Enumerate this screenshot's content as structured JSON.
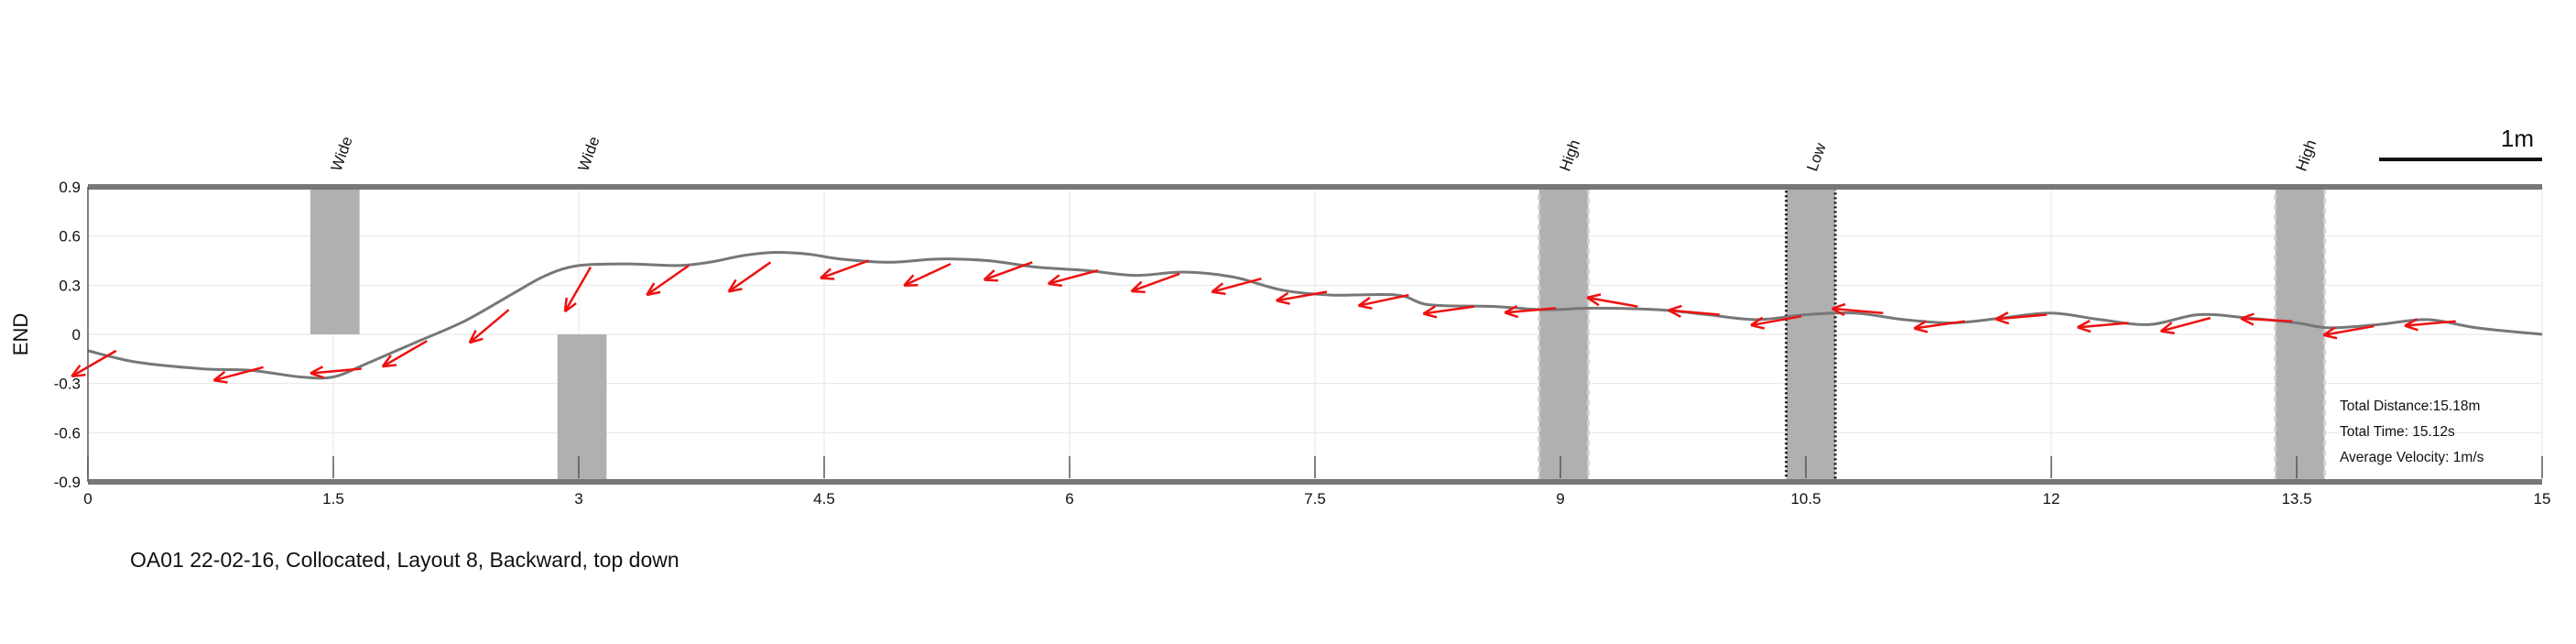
{
  "chart_data": {
    "type": "line",
    "xlim": [
      0,
      15
    ],
    "ylim": [
      -0.9,
      0.9
    ],
    "xticks": [
      "0",
      "1.5",
      "3",
      "4.5",
      "6",
      "7.5",
      "9",
      "10.5",
      "12",
      "13.5",
      "15"
    ],
    "yticks": [
      "0.9",
      "0.6",
      "0.3",
      "0",
      "-0.3",
      "-0.6",
      "-0.9"
    ],
    "ylabel": "END",
    "xlabel": "",
    "grid": true,
    "series": [
      {
        "points": [
          [
            0,
            -0.1
          ],
          [
            0.3,
            -0.17
          ],
          [
            0.7,
            -0.21
          ],
          [
            1.0,
            -0.22
          ],
          [
            1.3,
            -0.26
          ],
          [
            1.5,
            -0.26
          ],
          [
            1.7,
            -0.18
          ],
          [
            2.0,
            -0.05
          ],
          [
            2.3,
            0.08
          ],
          [
            2.6,
            0.25
          ],
          [
            2.8,
            0.36
          ],
          [
            3.0,
            0.42
          ],
          [
            3.3,
            0.43
          ],
          [
            3.6,
            0.42
          ],
          [
            3.8,
            0.44
          ],
          [
            4.0,
            0.48
          ],
          [
            4.2,
            0.5
          ],
          [
            4.4,
            0.49
          ],
          [
            4.6,
            0.46
          ],
          [
            4.9,
            0.44
          ],
          [
            5.2,
            0.46
          ],
          [
            5.5,
            0.45
          ],
          [
            5.8,
            0.41
          ],
          [
            6.1,
            0.39
          ],
          [
            6.4,
            0.36
          ],
          [
            6.7,
            0.38
          ],
          [
            7.0,
            0.35
          ],
          [
            7.3,
            0.27
          ],
          [
            7.6,
            0.24
          ],
          [
            8.0,
            0.24
          ],
          [
            8.2,
            0.18
          ],
          [
            8.6,
            0.17
          ],
          [
            8.9,
            0.15
          ],
          [
            9.2,
            0.16
          ],
          [
            9.6,
            0.15
          ],
          [
            9.9,
            0.12
          ],
          [
            10.2,
            0.09
          ],
          [
            10.5,
            0.12
          ],
          [
            10.8,
            0.13
          ],
          [
            11.1,
            0.09
          ],
          [
            11.4,
            0.07
          ],
          [
            11.7,
            0.1
          ],
          [
            12.0,
            0.13
          ],
          [
            12.3,
            0.09
          ],
          [
            12.6,
            0.06
          ],
          [
            12.9,
            0.12
          ],
          [
            13.2,
            0.1
          ],
          [
            13.5,
            0.07
          ],
          [
            13.7,
            0.04
          ],
          [
            14.0,
            0.06
          ],
          [
            14.3,
            0.09
          ],
          [
            14.6,
            0.04
          ],
          [
            15.0,
            0.0
          ]
        ]
      }
    ],
    "arrows": [
      [
        0.0,
        -0.1,
        30
      ],
      [
        0.9,
        -0.2,
        15
      ],
      [
        1.5,
        -0.21,
        5
      ],
      [
        1.9,
        -0.04,
        30
      ],
      [
        2.4,
        0.15,
        40
      ],
      [
        2.9,
        0.41,
        60
      ],
      [
        3.5,
        0.42,
        35
      ],
      [
        4.0,
        0.44,
        35
      ],
      [
        4.6,
        0.45,
        20
      ],
      [
        5.1,
        0.43,
        25
      ],
      [
        5.6,
        0.44,
        20
      ],
      [
        6.0,
        0.39,
        15
      ],
      [
        6.5,
        0.37,
        20
      ],
      [
        7.0,
        0.34,
        15
      ],
      [
        7.4,
        0.26,
        10
      ],
      [
        7.9,
        0.24,
        12
      ],
      [
        8.3,
        0.17,
        8
      ],
      [
        8.8,
        0.16,
        5
      ],
      [
        9.3,
        0.17,
        -10
      ],
      [
        9.8,
        0.12,
        -5
      ],
      [
        10.3,
        0.11,
        10
      ],
      [
        10.8,
        0.13,
        -5
      ],
      [
        11.3,
        0.08,
        8
      ],
      [
        11.8,
        0.12,
        5
      ],
      [
        12.3,
        0.07,
        5
      ],
      [
        12.8,
        0.1,
        15
      ],
      [
        13.3,
        0.08,
        -3
      ],
      [
        13.8,
        0.05,
        10
      ],
      [
        14.3,
        0.08,
        5
      ]
    ],
    "obstacles": [
      {
        "label": "Wide",
        "x_start": 1.36,
        "x_end": 1.66,
        "y_start": 0.0,
        "y_end": 0.9,
        "style": "solid"
      },
      {
        "label": "Wide",
        "x_start": 2.87,
        "x_end": 3.17,
        "y_start": -0.9,
        "y_end": 0.0,
        "style": "solid"
      },
      {
        "label": "High",
        "x_start": 8.87,
        "x_end": 9.17,
        "y_start": -0.9,
        "y_end": 0.9,
        "style": "dashed"
      },
      {
        "label": "Low",
        "x_start": 10.38,
        "x_end": 10.68,
        "y_start": -0.9,
        "y_end": 0.9,
        "style": "dotted"
      },
      {
        "label": "High",
        "x_start": 13.37,
        "x_end": 13.67,
        "y_start": -0.9,
        "y_end": 0.9,
        "style": "dashed"
      }
    ],
    "scale_bar_label": "1m",
    "colors": {
      "path": "#777777",
      "arrow": "#ee1111",
      "obstacle": "#b0b0b0",
      "grid": "#e6e6e6",
      "wall": "#777777"
    }
  },
  "stats": {
    "total_distance": "Total Distance:15.18m",
    "total_time": "Total Time: 15.12s",
    "average_velocity": "Average Velocity: 1m/s"
  },
  "caption": "OA01 22-02-16, Collocated, Layout 8, Backward, top down"
}
